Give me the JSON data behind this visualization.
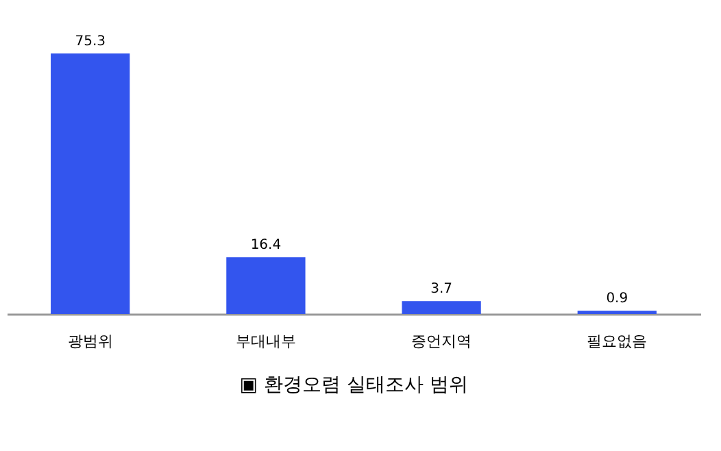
{
  "chart_data": {
    "type": "bar",
    "title": "▣ 환경오렴 실태조사 범위",
    "categories": [
      "광범위",
      "부대내부",
      "증언지역",
      "필요없음"
    ],
    "values": [
      75.3,
      16.4,
      3.7,
      0.9
    ],
    "color": "#3355ee",
    "data_labels": true
  }
}
